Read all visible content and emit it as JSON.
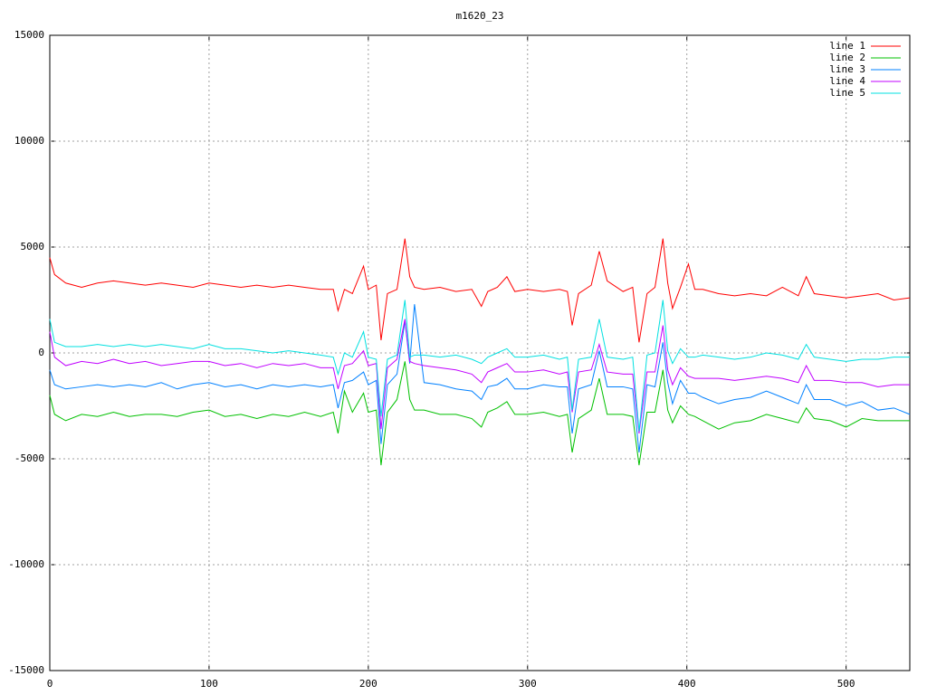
{
  "chart_data": {
    "type": "line",
    "title": "m1620_23",
    "x": [
      0,
      3,
      10,
      20,
      30,
      40,
      50,
      60,
      70,
      80,
      90,
      100,
      110,
      120,
      130,
      140,
      150,
      160,
      170,
      178,
      181,
      185,
      190,
      197,
      200,
      205,
      208,
      212,
      218,
      223,
      226,
      229,
      235,
      245,
      255,
      265,
      271,
      275,
      281,
      287,
      292,
      300,
      310,
      320,
      325,
      328,
      332,
      340,
      345,
      350,
      360,
      366,
      370,
      375,
      380,
      385,
      388,
      391,
      396,
      401,
      405,
      410,
      420,
      430,
      440,
      450,
      460,
      470,
      475,
      480,
      490,
      500,
      510,
      520,
      530,
      540
    ],
    "series": [
      {
        "name": "line 1",
        "color": "#ff0000",
        "values": [
          4500,
          3700,
          3300,
          3100,
          3300,
          3400,
          3300,
          3200,
          3300,
          3200,
          3100,
          3300,
          3200,
          3100,
          3200,
          3100,
          3200,
          3100,
          3000,
          3000,
          2000,
          3000,
          2800,
          4100,
          3000,
          3200,
          600,
          2800,
          3000,
          5400,
          3600,
          3100,
          3000,
          3100,
          2900,
          3000,
          2200,
          2900,
          3100,
          3600,
          2900,
          3000,
          2900,
          3000,
          2900,
          1300,
          2800,
          3200,
          4800,
          3400,
          2900,
          3100,
          500,
          2800,
          3100,
          5400,
          3300,
          2100,
          3100,
          4200,
          3000,
          3000,
          2800,
          2700,
          2800,
          2700,
          3100,
          2700,
          3600,
          2800,
          2700,
          2600,
          2700,
          2800,
          2500,
          2600
        ]
      },
      {
        "name": "line 2",
        "color": "#00c000",
        "values": [
          -2000,
          -2900,
          -3200,
          -2900,
          -3000,
          -2800,
          -3000,
          -2900,
          -2900,
          -3000,
          -2800,
          -2700,
          -3000,
          -2900,
          -3100,
          -2900,
          -3000,
          -2800,
          -3000,
          -2800,
          -3800,
          -1800,
          -2800,
          -1900,
          -2800,
          -2700,
          -5300,
          -2800,
          -2200,
          -400,
          -2200,
          -2700,
          -2700,
          -2900,
          -2900,
          -3100,
          -3500,
          -2800,
          -2600,
          -2300,
          -2900,
          -2900,
          -2800,
          -3000,
          -2900,
          -4700,
          -3100,
          -2700,
          -1200,
          -2900,
          -2900,
          -3000,
          -5300,
          -2800,
          -2800,
          -800,
          -2700,
          -3300,
          -2500,
          -2900,
          -3000,
          -3200,
          -3600,
          -3300,
          -3200,
          -2900,
          -3100,
          -3300,
          -2600,
          -3100,
          -3200,
          -3500,
          -3100,
          -3200,
          -3200,
          -3200
        ]
      },
      {
        "name": "line 3",
        "color": "#0080ff",
        "values": [
          -800,
          -1500,
          -1700,
          -1600,
          -1500,
          -1600,
          -1500,
          -1600,
          -1400,
          -1700,
          -1500,
          -1400,
          -1600,
          -1500,
          -1700,
          -1500,
          -1600,
          -1500,
          -1600,
          -1500,
          -2600,
          -1400,
          -1300,
          -900,
          -1500,
          -1300,
          -4300,
          -1500,
          -1000,
          1500,
          -500,
          2300,
          -1400,
          -1500,
          -1700,
          -1800,
          -2200,
          -1600,
          -1500,
          -1200,
          -1700,
          -1700,
          -1500,
          -1600,
          -1600,
          -3800,
          -1700,
          -1500,
          100,
          -1600,
          -1600,
          -1700,
          -4700,
          -1500,
          -1600,
          500,
          -1400,
          -2400,
          -1300,
          -1900,
          -1900,
          -2100,
          -2400,
          -2200,
          -2100,
          -1800,
          -2100,
          -2400,
          -1500,
          -2200,
          -2200,
          -2500,
          -2300,
          -2700,
          -2600,
          -2900
        ]
      },
      {
        "name": "line 4",
        "color": "#c000ff",
        "values": [
          1000,
          -200,
          -600,
          -400,
          -500,
          -300,
          -500,
          -400,
          -600,
          -500,
          -400,
          -400,
          -600,
          -500,
          -700,
          -500,
          -600,
          -500,
          -700,
          -700,
          -1700,
          -600,
          -500,
          100,
          -600,
          -500,
          -3600,
          -700,
          -300,
          1600,
          -400,
          -500,
          -600,
          -700,
          -800,
          -1000,
          -1400,
          -900,
          -700,
          -500,
          -900,
          -900,
          -800,
          -1000,
          -900,
          -2800,
          -900,
          -800,
          400,
          -900,
          -1000,
          -1000,
          -3800,
          -900,
          -900,
          1300,
          -800,
          -1500,
          -700,
          -1100,
          -1200,
          -1200,
          -1200,
          -1300,
          -1200,
          -1100,
          -1200,
          -1400,
          -600,
          -1300,
          -1300,
          -1400,
          -1400,
          -1600,
          -1500,
          -1500
        ]
      },
      {
        "name": "line 5",
        "color": "#00e0e0",
        "values": [
          1600,
          500,
          300,
          300,
          400,
          300,
          400,
          300,
          400,
          300,
          200,
          400,
          200,
          200,
          100,
          0,
          100,
          0,
          -100,
          -200,
          -1000,
          0,
          -200,
          1000,
          -200,
          -300,
          -3000,
          -300,
          -100,
          2500,
          -200,
          -100,
          -100,
          -200,
          -100,
          -300,
          -500,
          -200,
          0,
          200,
          -200,
          -200,
          -100,
          -300,
          -200,
          -2700,
          -300,
          -200,
          1600,
          -200,
          -300,
          -200,
          -3700,
          -100,
          0,
          2500,
          100,
          -500,
          200,
          -200,
          -200,
          -100,
          -200,
          -300,
          -200,
          0,
          -100,
          -300,
          400,
          -200,
          -300,
          -400,
          -300,
          -300,
          -200,
          -200
        ]
      }
    ],
    "xlim": [
      0,
      540
    ],
    "xticks": [
      0,
      100,
      200,
      300,
      400,
      500
    ],
    "ylim": [
      -15000,
      15000
    ],
    "yticks": [
      -15000,
      -10000,
      -5000,
      0,
      5000,
      10000,
      15000
    ],
    "grid": true,
    "legend": "top-right"
  }
}
